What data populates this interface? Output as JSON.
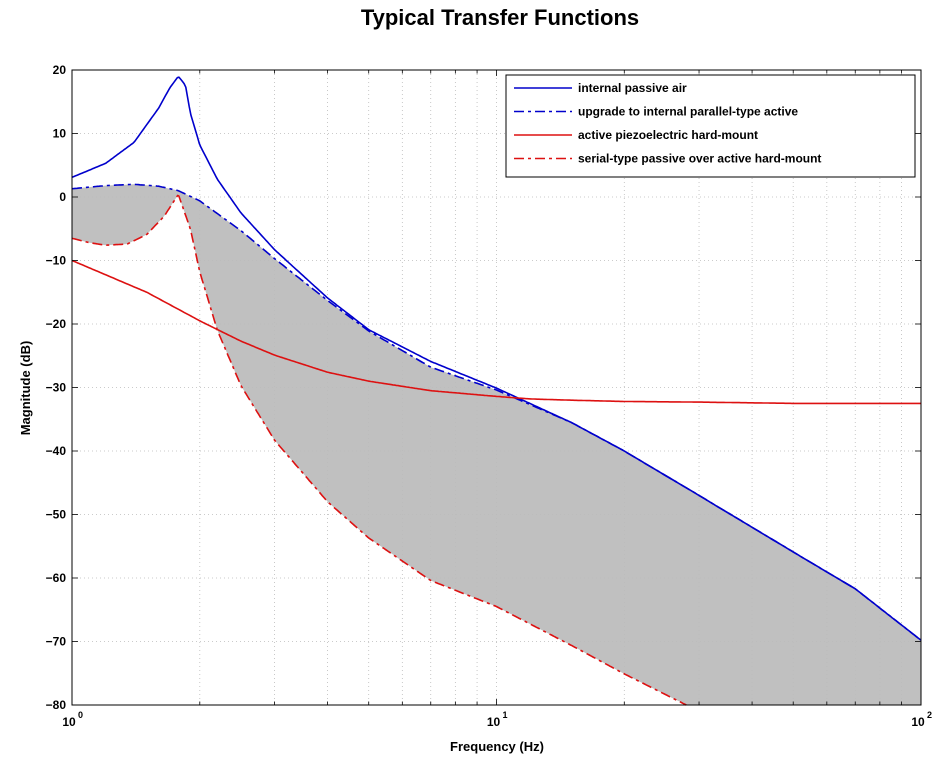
{
  "chart_data": {
    "type": "line",
    "title": "Typical Transfer Functions",
    "xlabel": "Frequency (Hz)",
    "ylabel": "Magnitude (dB)",
    "x_scale": "log",
    "xlim": [
      1,
      100
    ],
    "ylim": [
      -80,
      20
    ],
    "x_ticks": [
      {
        "base": "10",
        "exp": "0"
      },
      {
        "base": "10",
        "exp": "1"
      },
      {
        "base": "10",
        "exp": "2"
      }
    ],
    "y_ticks": [
      "20",
      "10",
      "0",
      "−10",
      "−20",
      "−30",
      "−40",
      "−50",
      "−60",
      "−70",
      "−80"
    ],
    "grid": true,
    "legend_position": "top-right",
    "shaded_region": {
      "between": [
        "upgrade to internal parallel-type active",
        "serial-type passive over active hard-mount"
      ],
      "color": "#c0c0c0"
    },
    "series": [
      {
        "name": "internal passive air",
        "color": "#0000cc",
        "style": "solid",
        "x": [
          1,
          1.2,
          1.4,
          1.6,
          1.7,
          1.78,
          1.85,
          1.9,
          2.0,
          2.2,
          2.5,
          3,
          4,
          5,
          7,
          10,
          15,
          20,
          30,
          50,
          70,
          100
        ],
        "y": [
          3.1,
          5.3,
          8.6,
          14.0,
          17.2,
          19.0,
          17.6,
          13.2,
          8.2,
          2.8,
          -2.5,
          -8.3,
          -15.9,
          -20.9,
          -25.9,
          -30.1,
          -35.5,
          -40.0,
          -47.0,
          -55.9,
          -61.7,
          -69.8
        ]
      },
      {
        "name": "upgrade to internal parallel-type active",
        "color": "#0000cc",
        "style": "dashdot",
        "x": [
          1,
          1.2,
          1.4,
          1.6,
          1.78,
          2,
          2.5,
          3,
          4,
          5,
          7,
          10,
          15,
          20,
          30,
          50,
          70,
          100
        ],
        "y": [
          1.3,
          1.8,
          2.0,
          1.7,
          1.0,
          -0.6,
          -5.3,
          -9.7,
          -16.3,
          -21.1,
          -26.8,
          -30.4,
          -35.5,
          -40.0,
          -47.0,
          -55.9,
          -61.7,
          -69.8
        ]
      },
      {
        "name": "active piezoelectric hard-mount",
        "color": "#dd1111",
        "style": "solid",
        "x": [
          1,
          1.5,
          2,
          2.5,
          3,
          4,
          5,
          7,
          10,
          12,
          15,
          20,
          30,
          50,
          70,
          100
        ],
        "y": [
          -10.0,
          -15.0,
          -19.5,
          -22.7,
          -24.9,
          -27.6,
          -29.0,
          -30.5,
          -31.4,
          -31.8,
          -32.0,
          -32.2,
          -32.3,
          -32.5,
          -32.5,
          -32.5
        ]
      },
      {
        "name": "serial-type passive over active hard-mount",
        "color": "#dd1111",
        "style": "dashdot",
        "x": [
          1,
          1.1,
          1.2,
          1.35,
          1.5,
          1.65,
          1.78,
          1.9,
          2.0,
          2.2,
          2.5,
          3,
          4,
          5,
          7,
          10,
          15,
          20,
          28
        ],
        "y": [
          -6.5,
          -7.2,
          -7.6,
          -7.4,
          -5.9,
          -3.0,
          0.4,
          -5.0,
          -11.8,
          -21.0,
          -29.7,
          -38.3,
          -48.0,
          -53.7,
          -60.4,
          -64.5,
          -70.6,
          -75.1,
          -80.0
        ]
      }
    ]
  }
}
